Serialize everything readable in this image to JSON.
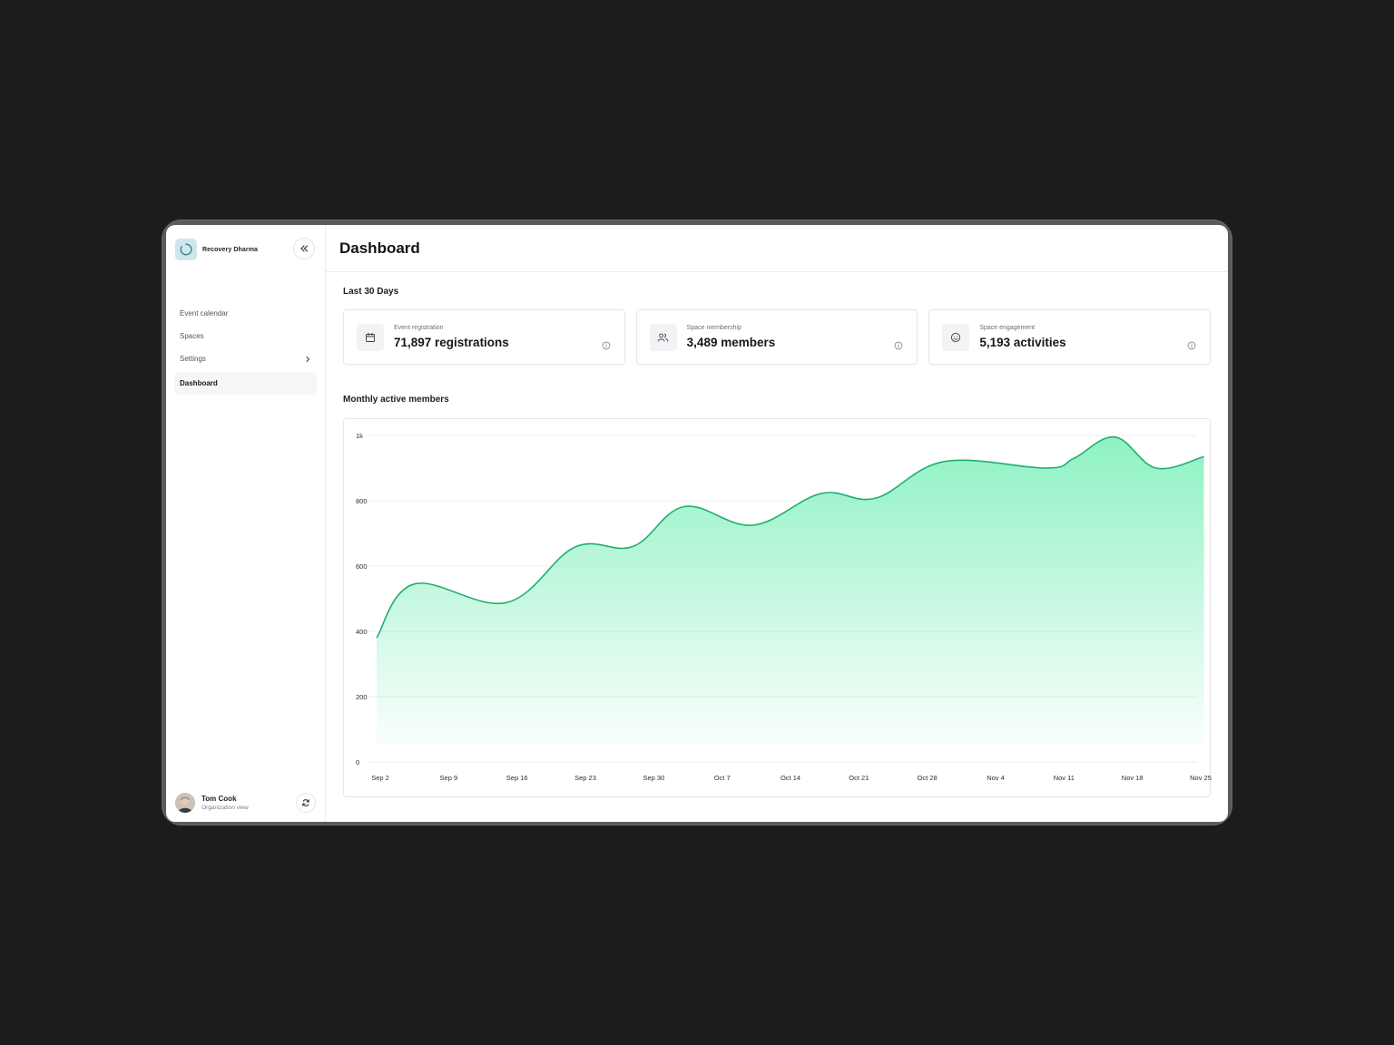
{
  "brand": {
    "name": "Recovery Dharma"
  },
  "sidebar": {
    "items": [
      {
        "label": "Event calendar"
      },
      {
        "label": "Spaces"
      },
      {
        "label": "Settings"
      },
      {
        "label": "Dashboard"
      }
    ]
  },
  "user": {
    "name": "Tom Cook",
    "subtitle": "Organization view"
  },
  "header": {
    "title": "Dashboard"
  },
  "stats": {
    "period_label": "Last 30 Days",
    "cards": [
      {
        "label": "Event registration",
        "value": "71,897 registrations",
        "icon": "calendar-icon"
      },
      {
        "label": "Space membership",
        "value": "3,489 members",
        "icon": "users-icon"
      },
      {
        "label": "Space engagement",
        "value": "5,193 activities",
        "icon": "smile-icon"
      }
    ]
  },
  "chart_section": {
    "title": "Monthly active members"
  },
  "colors": {
    "accent": "#1fae74",
    "fill_top": "#8ef2c3",
    "grid": "#ececec"
  },
  "chart_data": {
    "type": "area",
    "title": "Monthly active members",
    "y_ticks": [
      "0",
      "200",
      "400",
      "600",
      "800",
      "1k"
    ],
    "ylim": [
      0,
      1000
    ],
    "x_tick_labels": [
      "Sep 2",
      "Sep 9",
      "Sep 16",
      "Sep 23",
      "Sep 30",
      "Oct 7",
      "Oct 14",
      "Oct 21",
      "Oct 28",
      "Nov 4",
      "Nov 11",
      "Nov 18",
      "Nov 25"
    ],
    "grid": true,
    "series": [
      {
        "values": [
          380,
          545,
          488,
          658,
          660,
          782,
          725,
          822,
          808,
          920,
          900,
          930,
          995,
          900,
          935
        ],
        "x_positions": [
          0,
          0.55,
          1.9,
          2.9,
          3.75,
          4.5,
          5.5,
          6.5,
          7.3,
          8.3,
          9.8,
          10.2,
          10.8,
          11.4,
          12.1
        ]
      }
    ]
  }
}
